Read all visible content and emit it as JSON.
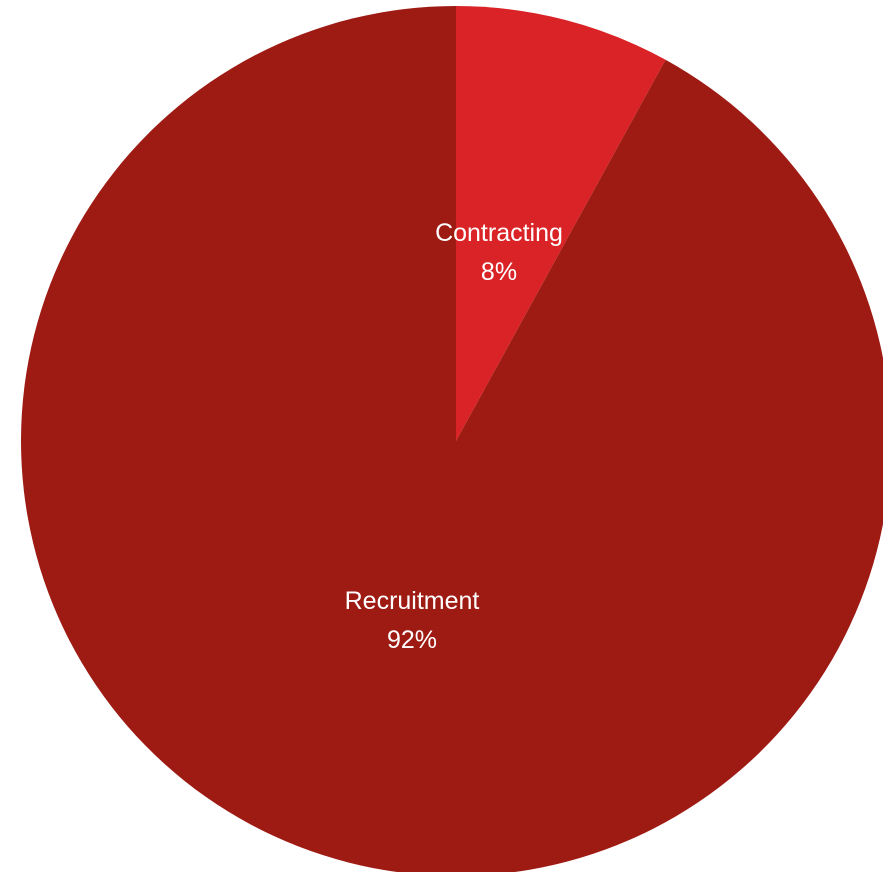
{
  "chart_data": {
    "type": "pie",
    "title": "",
    "slices": [
      {
        "label": "Recruitment",
        "value": 92,
        "value_label": "92%",
        "color": "#9e1b14"
      },
      {
        "label": "Contracting",
        "value": 8,
        "value_label": "8%",
        "color": "#da2326"
      }
    ],
    "legend": "none"
  }
}
